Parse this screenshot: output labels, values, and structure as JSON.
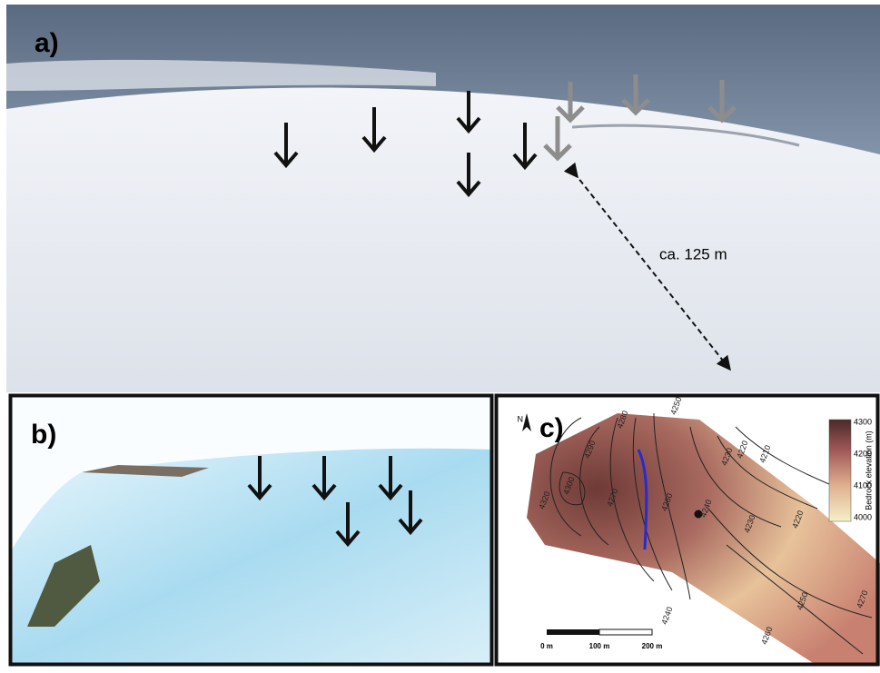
{
  "panels": {
    "a": {
      "label": "a)",
      "distance": "ca. 125 m"
    },
    "b": {
      "label": "b)"
    },
    "c": {
      "label": "c)",
      "north": "N",
      "colorbar": {
        "title": "Bedrock elevation (m)",
        "ticks": [
          "4300",
          "4200",
          "4100",
          "4000"
        ]
      },
      "scale": [
        "0 m",
        "100 m",
        "200 m"
      ],
      "contour_labels": [
        "4250",
        "4280",
        "4290",
        "4300",
        "4320",
        "4270",
        "4260",
        "4240",
        "4230",
        "4220",
        "4210",
        "4220",
        "4230",
        "4240",
        "4250",
        "4260",
        "4270"
      ]
    }
  }
}
